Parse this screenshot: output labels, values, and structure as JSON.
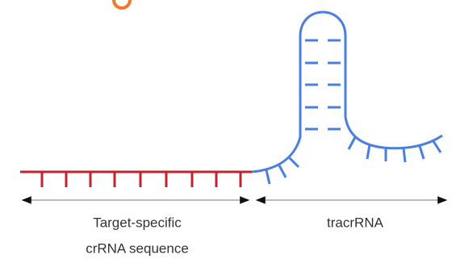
{
  "labels": {
    "crrna_line1": "Target-specific",
    "crrna_line2": "crRNA sequence",
    "tracrrna": "tracrRNA"
  }
}
